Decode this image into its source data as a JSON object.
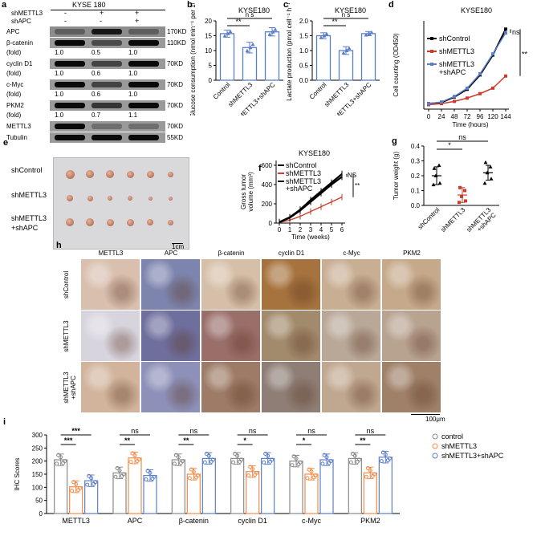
{
  "panels": {
    "a": "a",
    "b": "b",
    "c": "c",
    "d": "d",
    "e": "e",
    "f": "f",
    "g": "g",
    "h": "h",
    "i": "i"
  },
  "western_blot": {
    "title": "KYSE 180",
    "cond_labels": [
      "shMETTL3",
      "shAPC"
    ],
    "signs": {
      "shMETTL3": [
        "-",
        "+",
        "+"
      ],
      "shAPC": [
        "-",
        "-",
        "+"
      ]
    },
    "bands": [
      {
        "name": "APC",
        "kd": "170KD"
      },
      {
        "name": "β-catenin",
        "kd": "110KD"
      },
      {
        "name": "(fold)",
        "fold": [
          "1.0",
          "0.5",
          "1.0"
        ]
      },
      {
        "name": "cyclin D1",
        "kd": "70KD"
      },
      {
        "name": "(fold)",
        "fold": [
          "1.0",
          "0.6",
          "1.0"
        ]
      },
      {
        "name": "c-Myc",
        "kd": "70KD"
      },
      {
        "name": "(fold)",
        "fold": [
          "1.0",
          "0.6",
          "1.0"
        ]
      },
      {
        "name": "PKM2",
        "kd": "70KD"
      },
      {
        "name": "(fold)",
        "fold": [
          "1.0",
          "0.7",
          "1.1"
        ]
      },
      {
        "name": "METTL3",
        "kd": "70KD"
      },
      {
        "name": "Tubulin",
        "kd": "55KD"
      }
    ]
  },
  "chart_data": [
    {
      "id": "b",
      "type": "bar",
      "title": "KYSE180",
      "categories": [
        "Control",
        "shMETTL3",
        "shMETTL3+shAPC"
      ],
      "values": [
        15.7,
        11,
        16.3
      ],
      "errors": [
        1.2,
        1.8,
        1.4
      ],
      "ylabel": "Glucose consumption (nmol min⁻¹ per 10⁶cells)",
      "yticks": [
        "0",
        "5",
        "10",
        "15",
        "20"
      ],
      "ylim": [
        0,
        20
      ],
      "sig": [
        "**",
        "n s"
      ]
    },
    {
      "id": "c",
      "type": "bar",
      "title": "KYSE180",
      "categories": [
        "Control",
        "shMETTL3",
        "shMETTL3+shAPC"
      ],
      "values": [
        1.5,
        1.0,
        1.57
      ],
      "errors": [
        0.1,
        0.13,
        0.07
      ],
      "ylabel": "Lactate production (pmol cell⁻¹ h⁻¹)",
      "yticks": [
        "0.0",
        "0.5",
        "1.0",
        "1.5",
        "2.0"
      ],
      "ylim": [
        0,
        2
      ],
      "sig": [
        "**",
        "n s"
      ]
    },
    {
      "id": "d",
      "type": "line",
      "title": "KYSE180",
      "x": [
        0,
        24,
        48,
        72,
        96,
        120,
        144
      ],
      "xticks": [
        "0",
        "24",
        "48",
        "72",
        "96",
        "120",
        "144"
      ],
      "xlabel": "Time (hours)",
      "ylabel": "Cell counting (OD450)",
      "ylim": [
        0,
        1.6
      ],
      "series": [
        {
          "name": "shControl",
          "values": [
            0.1,
            0.12,
            0.22,
            0.36,
            0.62,
            0.98,
            1.45
          ]
        },
        {
          "name": "shMETTL3",
          "values": [
            0.08,
            0.1,
            0.14,
            0.2,
            0.28,
            0.38,
            0.6
          ]
        },
        {
          "name": "shMETTL3\n+shAPC",
          "values": [
            0.1,
            0.13,
            0.23,
            0.38,
            0.64,
            1.0,
            1.38
          ]
        }
      ],
      "sig": [
        "ns",
        "**"
      ]
    },
    {
      "id": "f",
      "type": "line",
      "title": "KYSE180",
      "x": [
        0,
        1,
        2,
        3,
        4,
        5,
        6
      ],
      "xticks": [
        "0",
        "1",
        "2",
        "3",
        "4",
        "5",
        "6"
      ],
      "xlabel": "Time (weeks)",
      "ylabel": "Gross tumor volume (mm³)",
      "yticks": [
        "0",
        "200",
        "400",
        "600"
      ],
      "ylim": [
        0,
        650
      ],
      "series": [
        {
          "name": "shControl",
          "values": [
            10,
            60,
            140,
            240,
            330,
            420,
            510
          ]
        },
        {
          "name": "shMETTL3",
          "values": [
            5,
            30,
            70,
            120,
            170,
            220,
            270
          ]
        },
        {
          "name": "shMETTL3\n+shAPC",
          "values": [
            10,
            55,
            130,
            220,
            310,
            400,
            480
          ]
        }
      ],
      "sig": [
        "NS",
        "**"
      ]
    },
    {
      "id": "g",
      "type": "scatter",
      "categories": [
        "shControl",
        "shMETTL3",
        "shMETTL3\n+shAPC"
      ],
      "means": [
        0.2,
        0.07,
        0.22
      ],
      "sd": [
        0.06,
        0.05,
        0.05
      ],
      "ylabel": "Tumor weight (g)",
      "yticks": [
        "0.0",
        "0.1",
        "0.2",
        "0.3",
        "0.4"
      ],
      "ylim": [
        0,
        0.4
      ],
      "points": [
        [
          0.25,
          0.27,
          0.2,
          0.15,
          0.14
        ],
        [
          0.12,
          0.1,
          0.06,
          0.03,
          0.02
        ],
        [
          0.29,
          0.26,
          0.22,
          0.18,
          0.15
        ]
      ],
      "sig": [
        "*",
        "ns"
      ]
    },
    {
      "id": "i",
      "type": "bar",
      "categories": [
        "METTL3",
        "APC",
        "β-catenin",
        "cyclin D1",
        "c-Myc",
        "PKM2"
      ],
      "ylabel": "IHC Scores",
      "yticks": [
        "0",
        "50",
        "100",
        "150",
        "200",
        "250",
        "300"
      ],
      "ylim": [
        0,
        300
      ],
      "series": [
        {
          "name": "control",
          "values": [
            205,
            155,
            205,
            210,
            200,
            210
          ]
        },
        {
          "name": "shMETTL3",
          "values": [
            102,
            212,
            150,
            160,
            150,
            155
          ]
        },
        {
          "name": "shMETTL3+shAPC",
          "values": [
            125,
            145,
            210,
            210,
            205,
            215
          ]
        }
      ],
      "sig": [
        [
          "***",
          "***"
        ],
        [
          "**",
          "ns"
        ],
        [
          "**",
          "ns"
        ],
        [
          "*",
          "ns"
        ],
        [
          "*",
          "ns"
        ],
        [
          "**",
          "ns"
        ]
      ]
    }
  ],
  "tumor_photo": {
    "rows": [
      "shControl",
      "shMETTL3",
      "shMETTL3\n+shAPC"
    ],
    "scale": "1cm"
  },
  "ihc": {
    "columns": [
      "METTL3",
      "APC",
      "β-catenin",
      "cyclin D1",
      "c-Myc",
      "PKM2"
    ],
    "rows": [
      "shControl",
      "shMETTL3",
      "shMETTL3\n+shAPC"
    ],
    "scale": "100μm"
  },
  "colors": {
    "blue": "#5b7fc7",
    "red": "#cc3b2b",
    "black": "#000000",
    "orange": "#f28c4a",
    "grey": "#8a8a8a"
  }
}
